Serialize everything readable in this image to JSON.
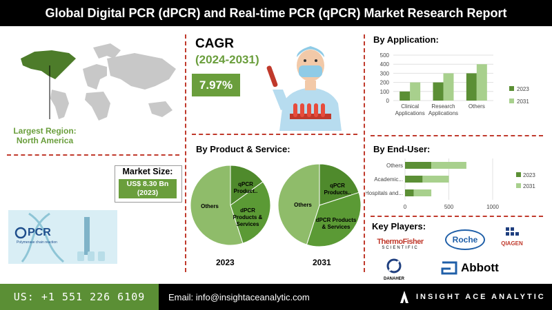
{
  "title": "Global Digital PCR (dPCR) and Real-time PCR (qPCR) Market Research Report",
  "region": {
    "label": "Largest Region:",
    "value": "North America"
  },
  "cagr": {
    "title": "CAGR",
    "period": "(2024-2031)",
    "value": "7.97%"
  },
  "market_size": {
    "label": "Market Size:",
    "value": "US$ 8.30 Bn",
    "year": "(2023)"
  },
  "sections": {
    "application": "By Application:",
    "product_service": "By Product & Service:",
    "end_user": "By End-User:",
    "key_players": "Key Players:"
  },
  "logos": {
    "pcr": "PCR",
    "pcr_sub": "Polymerase chain reaction",
    "thermo_1": "ThermoFisher",
    "thermo_2": "SCIENTIFIC",
    "roche": "Roche",
    "qiagen": "QIAGEN",
    "danaher": "DANAHER",
    "abbott": "Abbott"
  },
  "footer": {
    "phone": "US: +1 551 226 6109",
    "email": "Email: info@insightaceanalytic.com",
    "brand": "INSIGHT ACE ANALYTIC"
  },
  "colors": {
    "dark_green": "#5b8f35",
    "light_green": "#a8d08d",
    "accent_green": "#6a9e3c",
    "divider": "#c0392b"
  },
  "chart_data": [
    {
      "type": "bar",
      "title": "By Application:",
      "categories": [
        [
          "Clinical",
          "Applications"
        ],
        [
          "Research",
          "Applications"
        ],
        [
          "Others"
        ]
      ],
      "series": [
        {
          "name": "2023",
          "values": [
            100,
            200,
            300
          ],
          "color": "#5b8f35"
        },
        {
          "name": "2031",
          "values": [
            200,
            300,
            400
          ],
          "color": "#a8d08d"
        }
      ],
      "ylim": [
        0,
        500
      ],
      "yticks": [
        0,
        100,
        200,
        300,
        400,
        500
      ],
      "legend": "right"
    },
    {
      "type": "bar",
      "orientation": "horizontal",
      "title": "By End-User:",
      "categories": [
        "Others",
        "Academic...",
        "Hospitals and..."
      ],
      "series": [
        {
          "name": "2023",
          "values": [
            300,
            200,
            100
          ],
          "color": "#5b8f35"
        },
        {
          "name": "2031",
          "values": [
            400,
            300,
            200
          ],
          "color": "#a8d08d"
        }
      ],
      "xlim": [
        0,
        1000
      ],
      "xticks": [
        0,
        500,
        1000
      ],
      "legend": "right"
    },
    {
      "type": "pie",
      "title": "2023",
      "slices": [
        {
          "label": "Others",
          "value": 55,
          "color": "#8fbc6a"
        },
        {
          "label": "qPCR Product..",
          "value": 15,
          "color": "#4f8a2c"
        },
        {
          "label": "dPCR Products & Services",
          "value": 30,
          "color": "#5b9a35"
        }
      ]
    },
    {
      "type": "pie",
      "title": "2031",
      "slices": [
        {
          "label": "Others",
          "value": 45,
          "color": "#8fbc6a"
        },
        {
          "label": "qPCR Products..",
          "value": 20,
          "color": "#4f8a2c"
        },
        {
          "label": "dPCR Products & Services",
          "value": 35,
          "color": "#5b9a35"
        }
      ]
    }
  ]
}
